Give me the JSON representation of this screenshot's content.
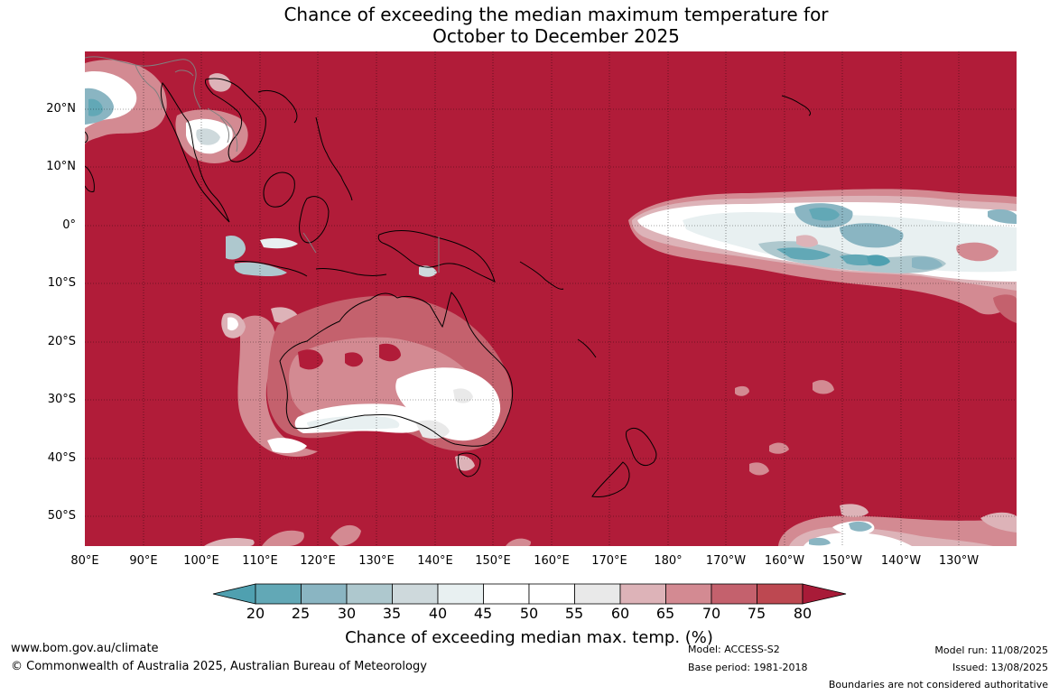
{
  "title": {
    "line1": "Chance of exceeding the median maximum temperature for",
    "line2": "October to December 2025"
  },
  "map": {
    "latitude_labels": [
      "20°N",
      "10°N",
      "0°",
      "10°S",
      "20°S",
      "30°S",
      "40°S",
      "50°S"
    ],
    "longitude_labels": [
      "80°E",
      "90°E",
      "100°E",
      "110°E",
      "120°E",
      "130°E",
      "140°E",
      "150°E",
      "160°E",
      "170°E",
      "180°",
      "170°W",
      "160°W",
      "150°W",
      "140°W",
      "130°W"
    ],
    "background_category_color": "#b11c39",
    "coastline_color": "#000000",
    "border_color": "#808080",
    "gridline_style": "dotted"
  },
  "colorbar": {
    "ticks": [
      "20",
      "25",
      "30",
      "35",
      "40",
      "45",
      "50",
      "55",
      "60",
      "65",
      "70",
      "75",
      "80"
    ],
    "colors": [
      "#62a8b6",
      "#8ab5c2",
      "#aec8ce",
      "#ced9dc",
      "#e8f0f1",
      "#ffffff",
      "#ffffff",
      "#e9e9e9",
      "#ddb3b8",
      "#d38a92",
      "#c4616d",
      "#bd4851"
    ],
    "under_color": "#4fa0b0",
    "over_color": "#a81b38",
    "label": "Chance of exceeding median max. temp. (%)"
  },
  "footer": {
    "url": "www.bom.gov.au/climate",
    "copyright": "© Commonwealth of Australia 2025, Australian Bureau of Meteorology",
    "model": "Model: ACCESS-S2",
    "base_period": "Base period: 1981-2018",
    "model_run": "Model run: 11/08/2025",
    "issued": "Issued: 13/08/2025",
    "disclaimer": "Boundaries are not considered authoritative"
  }
}
